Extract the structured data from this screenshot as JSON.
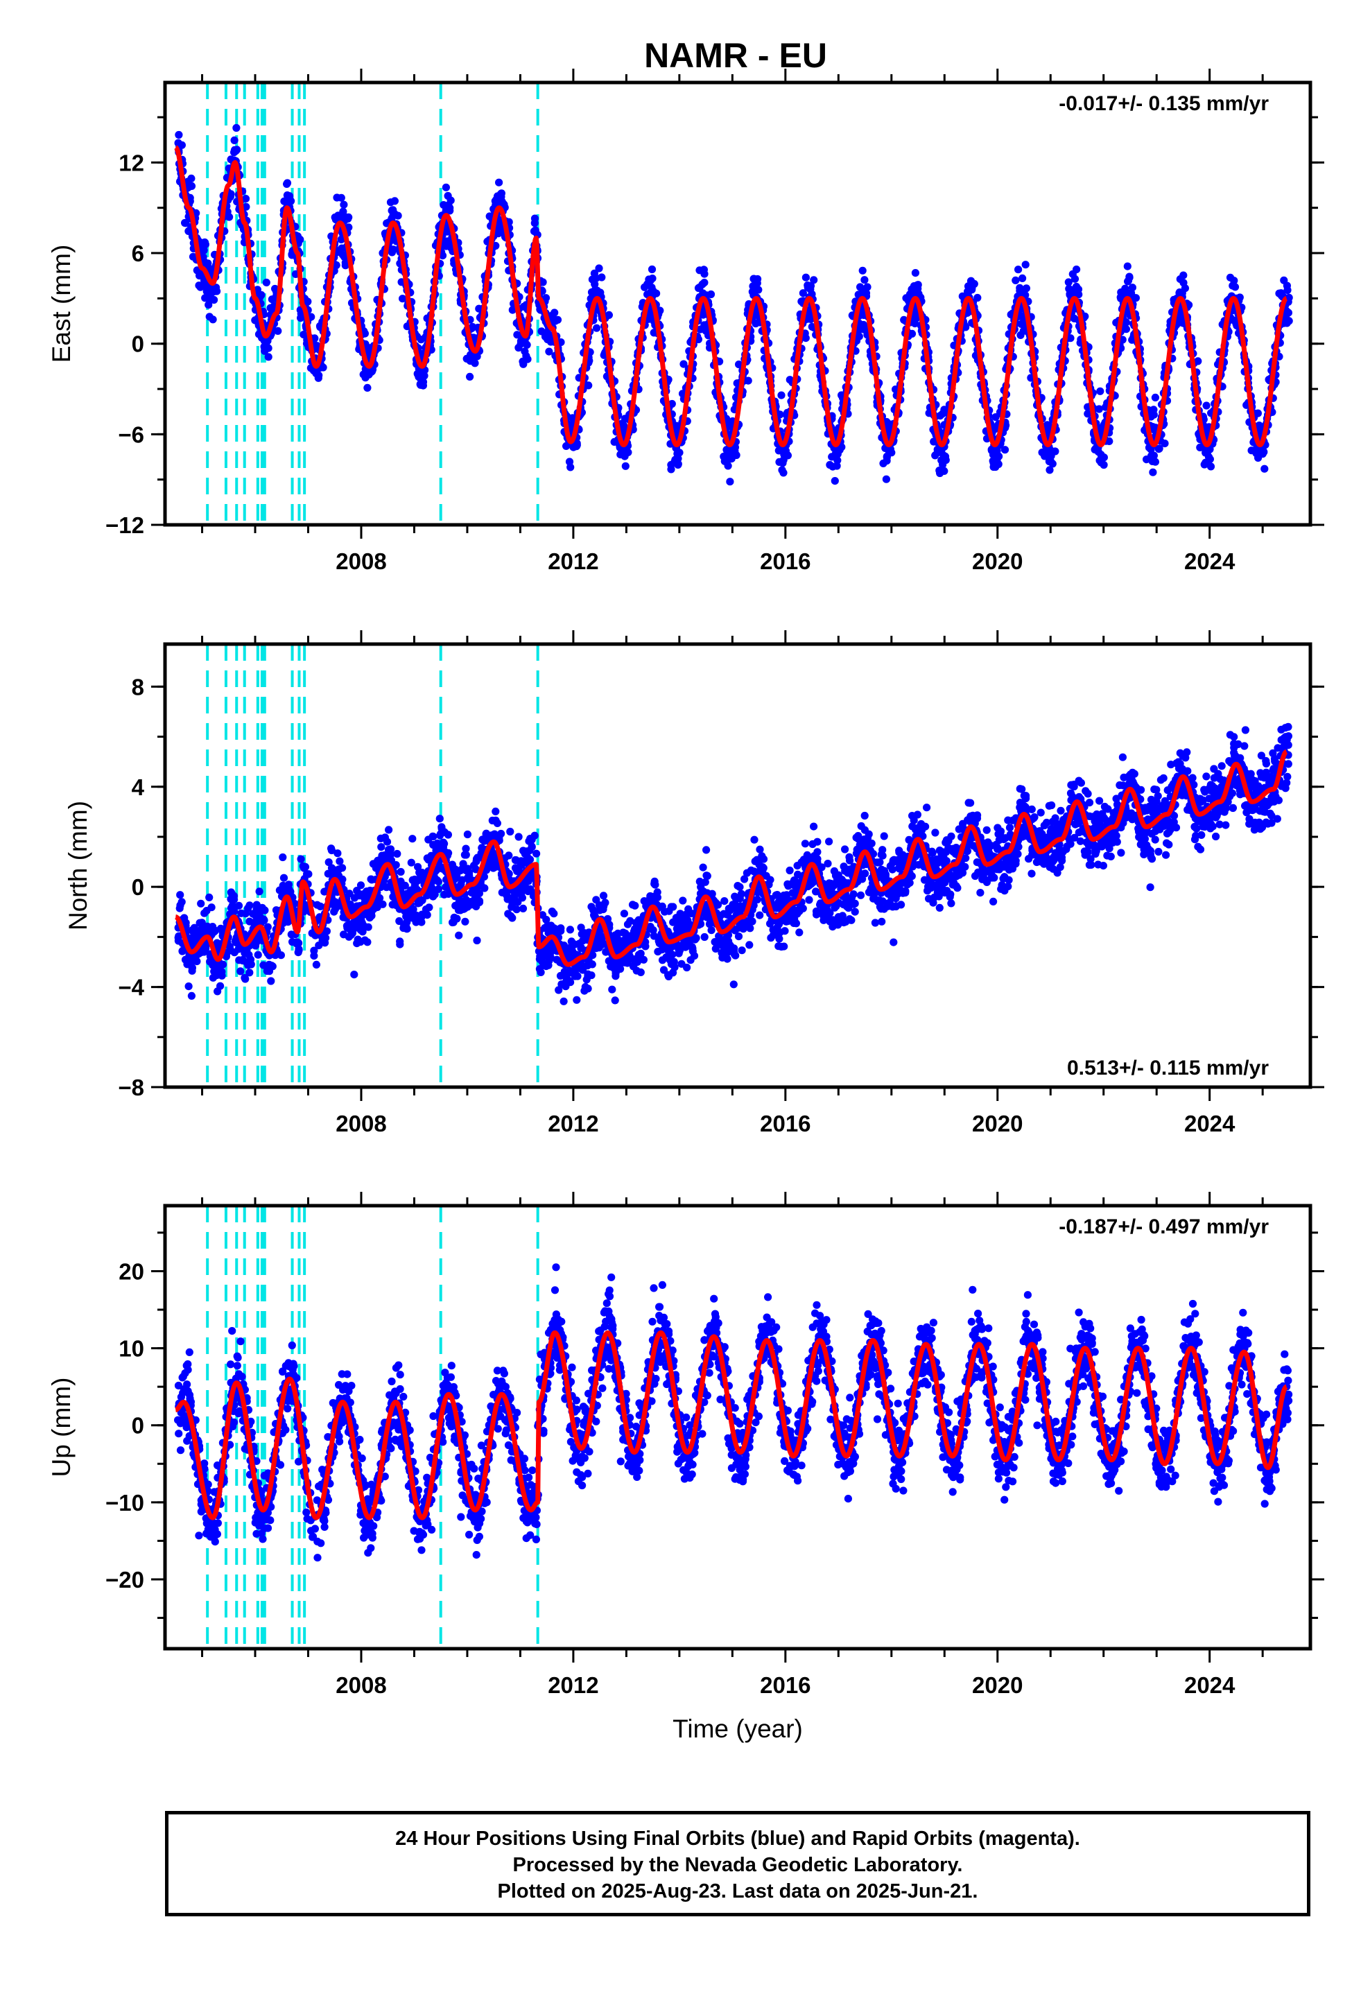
{
  "title": "NAMR - EU",
  "footer": {
    "line1": "24 Hour Positions Using Final Orbits (blue) and Rapid Orbits (magenta).",
    "line2": "Processed by the Nevada Geodetic Laboratory.",
    "line3": "Plotted on 2025-Aug-23. Last data on 2025-Jun-21."
  },
  "colors": {
    "points": "#0000ff",
    "fit": "#ff0000",
    "breaks": "#00e5e5"
  },
  "chart_data": [
    {
      "type": "scatter",
      "ylabel": "East (mm)",
      "rate": "-0.017+/- 0.135 mm/yr",
      "rate_position": "top-right",
      "xlim": [
        2004.3,
        2025.9
      ],
      "ylim": [
        -12,
        17.3
      ],
      "xticks": [
        2008,
        2012,
        2016,
        2020,
        2024
      ],
      "yticks": [
        -12,
        -6,
        0,
        6,
        12
      ],
      "ytick_labels": [
        "−12",
        "−6",
        "0",
        "6",
        "12"
      ],
      "xtick_labels": [
        "2008",
        "2012",
        "2016",
        "2020",
        "2024"
      ],
      "break_epochs": [
        2005.1,
        2005.45,
        2005.65,
        2005.8,
        2006.05,
        2006.13,
        2006.18,
        2006.7,
        2006.83,
        2006.93,
        2009.5,
        2011.33
      ],
      "fit": [
        [
          2004.5,
          13.0
        ],
        [
          2004.75,
          9.0
        ],
        [
          2005.0,
          5.0
        ],
        [
          2005.2,
          4.0
        ],
        [
          2005.5,
          10.5
        ],
        [
          2005.62,
          12.0
        ],
        [
          2005.8,
          8.0
        ],
        [
          2006.0,
          3.0
        ],
        [
          2006.2,
          0.5
        ],
        [
          2006.4,
          2.0
        ],
        [
          2006.6,
          9.0
        ],
        [
          2006.8,
          6.0
        ],
        [
          2006.9,
          2.5
        ],
        [
          2007.15,
          -1.5
        ],
        [
          2007.6,
          8.0
        ],
        [
          2008.15,
          -1.5
        ],
        [
          2008.6,
          8.0
        ],
        [
          2009.15,
          -1.5
        ],
        [
          2009.6,
          8.5
        ],
        [
          2010.15,
          -0.5
        ],
        [
          2010.6,
          9.0
        ],
        [
          2011.1,
          0.5
        ],
        [
          2011.3,
          7.0
        ],
        [
          2011.35,
          3.0
        ],
        [
          2011.6,
          1.0
        ],
        [
          2011.95,
          -6.5
        ],
        [
          2012.45,
          3.0
        ],
        [
          2012.95,
          -6.7
        ],
        [
          2013.45,
          3.0
        ],
        [
          2013.95,
          -6.7
        ],
        [
          2014.45,
          3.0
        ],
        [
          2014.95,
          -6.7
        ],
        [
          2015.45,
          3.0
        ],
        [
          2015.95,
          -6.7
        ],
        [
          2016.45,
          3.0
        ],
        [
          2016.95,
          -6.7
        ],
        [
          2017.45,
          3.0
        ],
        [
          2017.95,
          -6.7
        ],
        [
          2018.45,
          3.0
        ],
        [
          2018.95,
          -6.7
        ],
        [
          2019.45,
          3.0
        ],
        [
          2019.95,
          -6.7
        ],
        [
          2020.45,
          3.0
        ],
        [
          2020.95,
          -6.7
        ],
        [
          2021.45,
          3.0
        ],
        [
          2021.95,
          -6.7
        ],
        [
          2022.45,
          3.0
        ],
        [
          2022.95,
          -6.7
        ],
        [
          2023.45,
          3.0
        ],
        [
          2023.95,
          -6.7
        ],
        [
          2024.45,
          3.0
        ],
        [
          2024.95,
          -6.7
        ],
        [
          2025.45,
          3.0
        ]
      ]
    },
    {
      "type": "scatter",
      "ylabel": "North (mm)",
      "rate": "0.513+/- 0.115 mm/yr",
      "rate_position": "bottom-right",
      "xlim": [
        2004.3,
        2025.9
      ],
      "ylim": [
        -8,
        9.7
      ],
      "xticks": [
        2008,
        2012,
        2016,
        2020,
        2024
      ],
      "yticks": [
        -8,
        -4,
        0,
        4,
        8
      ],
      "ytick_labels": [
        "−8",
        "−4",
        "0",
        "4",
        "8"
      ],
      "xtick_labels": [
        "2008",
        "2012",
        "2016",
        "2020",
        "2024"
      ],
      "break_epochs": [
        2005.1,
        2005.45,
        2005.65,
        2005.8,
        2006.05,
        2006.13,
        2006.18,
        2006.7,
        2006.83,
        2006.93,
        2009.5,
        2011.33
      ],
      "fit": [
        [
          2004.5,
          -1.2
        ],
        [
          2004.8,
          -2.6
        ],
        [
          2005.1,
          -2.0
        ],
        [
          2005.3,
          -2.9
        ],
        [
          2005.6,
          -1.2
        ],
        [
          2005.8,
          -2.3
        ],
        [
          2006.1,
          -1.6
        ],
        [
          2006.3,
          -2.6
        ],
        [
          2006.6,
          -0.4
        ],
        [
          2006.8,
          -1.8
        ],
        [
          2006.9,
          0.2
        ],
        [
          2007.2,
          -1.8
        ],
        [
          2007.5,
          0.3
        ],
        [
          2007.8,
          -1.2
        ],
        [
          2008.1,
          -0.8
        ],
        [
          2008.5,
          0.9
        ],
        [
          2008.8,
          -0.8
        ],
        [
          2009.1,
          -0.3
        ],
        [
          2009.5,
          1.3
        ],
        [
          2009.8,
          -0.3
        ],
        [
          2010.1,
          0.1
        ],
        [
          2010.5,
          1.8
        ],
        [
          2010.8,
          0.0
        ],
        [
          2011.3,
          0.9
        ],
        [
          2011.35,
          -2.4
        ],
        [
          2011.6,
          -2.0
        ],
        [
          2011.9,
          -3.1
        ],
        [
          2012.2,
          -2.8
        ],
        [
          2012.5,
          -1.3
        ],
        [
          2012.8,
          -2.8
        ],
        [
          2013.2,
          -2.3
        ],
        [
          2013.5,
          -0.8
        ],
        [
          2013.8,
          -2.2
        ],
        [
          2014.2,
          -1.9
        ],
        [
          2014.5,
          -0.4
        ],
        [
          2014.8,
          -1.8
        ],
        [
          2015.2,
          -1.2
        ],
        [
          2015.5,
          0.4
        ],
        [
          2015.8,
          -1.2
        ],
        [
          2016.2,
          -0.6
        ],
        [
          2016.5,
          0.9
        ],
        [
          2016.8,
          -0.6
        ],
        [
          2017.2,
          -0.1
        ],
        [
          2017.5,
          1.4
        ],
        [
          2017.8,
          -0.1
        ],
        [
          2018.2,
          0.4
        ],
        [
          2018.5,
          1.9
        ],
        [
          2018.8,
          0.4
        ],
        [
          2019.2,
          0.9
        ],
        [
          2019.5,
          2.4
        ],
        [
          2019.8,
          0.9
        ],
        [
          2020.2,
          1.4
        ],
        [
          2020.5,
          2.9
        ],
        [
          2020.8,
          1.4
        ],
        [
          2021.2,
          1.9
        ],
        [
          2021.5,
          3.4
        ],
        [
          2021.8,
          1.9
        ],
        [
          2022.2,
          2.4
        ],
        [
          2022.5,
          3.9
        ],
        [
          2022.8,
          2.4
        ],
        [
          2023.2,
          2.9
        ],
        [
          2023.5,
          4.4
        ],
        [
          2023.8,
          2.9
        ],
        [
          2024.2,
          3.4
        ],
        [
          2024.5,
          4.9
        ],
        [
          2024.8,
          3.4
        ],
        [
          2025.2,
          3.9
        ],
        [
          2025.45,
          5.4
        ]
      ]
    },
    {
      "type": "scatter",
      "ylabel": "Up (mm)",
      "xlabel": "Time (year)",
      "rate": "-0.187+/- 0.497 mm/yr",
      "rate_position": "top-right",
      "xlim": [
        2004.3,
        2025.9
      ],
      "ylim": [
        -29,
        28.5
      ],
      "xticks": [
        2008,
        2012,
        2016,
        2020,
        2024
      ],
      "yticks": [
        -20,
        -10,
        0,
        10,
        20
      ],
      "ytick_labels": [
        "−20",
        "−10",
        "0",
        "10",
        "20"
      ],
      "xtick_labels": [
        "2008",
        "2012",
        "2016",
        "2020",
        "2024"
      ],
      "break_epochs": [
        2005.1,
        2005.45,
        2005.65,
        2005.8,
        2006.05,
        2006.13,
        2006.18,
        2006.7,
        2006.83,
        2006.93,
        2009.5,
        2011.33
      ],
      "fit": [
        [
          2004.5,
          2.0
        ],
        [
          2004.65,
          3.0
        ],
        [
          2005.2,
          -12.0
        ],
        [
          2005.65,
          5.5
        ],
        [
          2006.15,
          -11.0
        ],
        [
          2006.65,
          6.0
        ],
        [
          2007.15,
          -12.0
        ],
        [
          2007.65,
          3.0
        ],
        [
          2008.15,
          -12.0
        ],
        [
          2008.65,
          3.0
        ],
        [
          2009.15,
          -12.0
        ],
        [
          2009.65,
          4.0
        ],
        [
          2010.15,
          -11.0
        ],
        [
          2010.65,
          4.0
        ],
        [
          2011.2,
          -11.0
        ],
        [
          2011.33,
          -10.0
        ],
        [
          2011.35,
          3.0
        ],
        [
          2011.65,
          12.0
        ],
        [
          2012.15,
          -3.0
        ],
        [
          2012.65,
          12.0
        ],
        [
          2013.15,
          -3.5
        ],
        [
          2013.65,
          12.0
        ],
        [
          2014.15,
          -3.5
        ],
        [
          2014.65,
          11.5
        ],
        [
          2015.15,
          -3.5
        ],
        [
          2015.65,
          11.0
        ],
        [
          2016.15,
          -4.0
        ],
        [
          2016.65,
          11.0
        ],
        [
          2017.15,
          -4.0
        ],
        [
          2017.65,
          11.0
        ],
        [
          2018.15,
          -4.0
        ],
        [
          2018.65,
          10.5
        ],
        [
          2019.15,
          -4.0
        ],
        [
          2019.65,
          10.5
        ],
        [
          2020.15,
          -4.5
        ],
        [
          2020.65,
          10.5
        ],
        [
          2021.15,
          -4.5
        ],
        [
          2021.65,
          10.0
        ],
        [
          2022.15,
          -4.5
        ],
        [
          2022.65,
          10.0
        ],
        [
          2023.15,
          -5.0
        ],
        [
          2023.65,
          10.0
        ],
        [
          2024.15,
          -5.0
        ],
        [
          2024.65,
          9.5
        ],
        [
          2025.1,
          -5.5
        ],
        [
          2025.45,
          5.0
        ]
      ]
    }
  ]
}
